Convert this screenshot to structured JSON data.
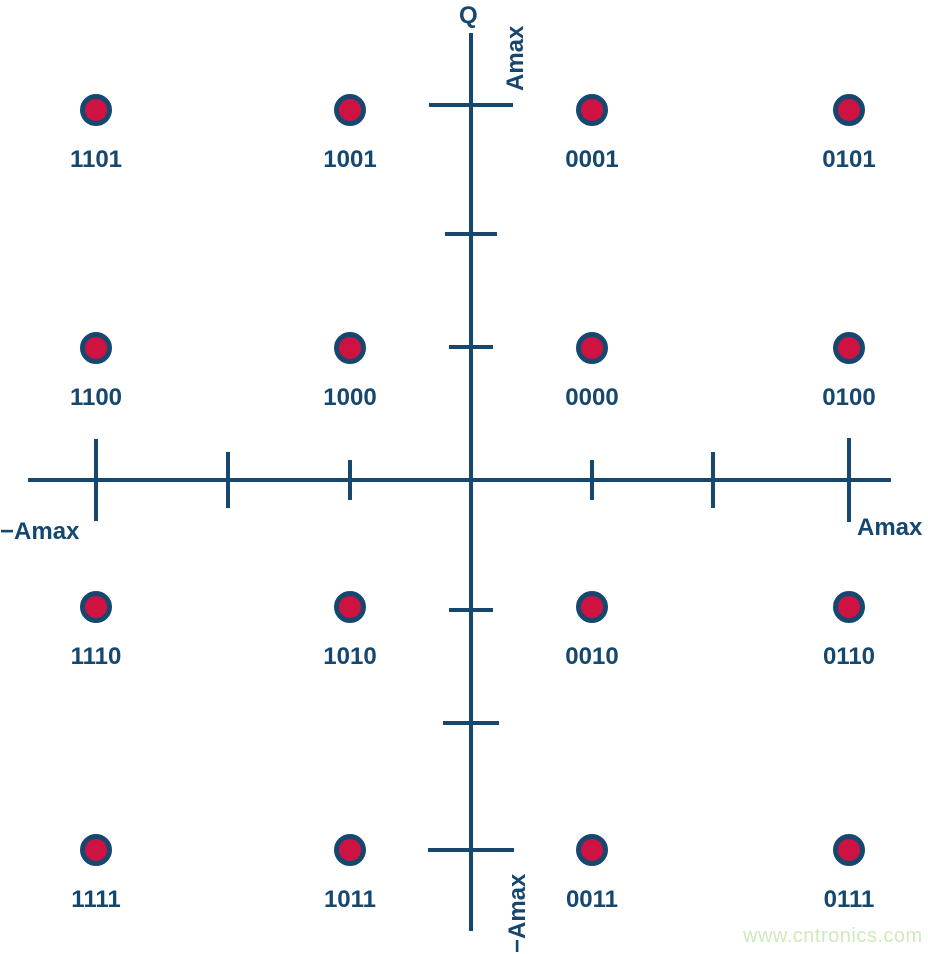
{
  "colors": {
    "axis": "#16476E",
    "point_fill": "#CE1241",
    "point_ring": "#16476E",
    "watermark": "#CFE9BD"
  },
  "axes": {
    "q_axis_label": "Q",
    "q_top_label": "Amax",
    "q_bottom_label": "−Amax",
    "i_left_label": "−Amax",
    "i_right_label": "Amax"
  },
  "watermark": "www.cntronics.com",
  "chart_data": {
    "type": "scatter",
    "description": "16-QAM constellation diagram: 4x4 grid of symbol points with Gray-coded 4-bit binary labels. I and Q amplitudes take values of ±Amax/3 and ±Amax.",
    "x_axis": {
      "label_left": "−Amax",
      "label_right": "Amax",
      "levels": [
        -1,
        -0.33,
        0.33,
        1
      ],
      "ticks_at": [
        -1,
        -0.67,
        -0.33,
        0.33,
        0.67,
        1
      ]
    },
    "y_axis": {
      "name": "Q",
      "label_top": "Amax",
      "label_bottom": "−Amax",
      "levels": [
        1,
        0.33,
        -0.33,
        -1
      ],
      "ticks_at": [
        1,
        0.67,
        0.33,
        -0.33,
        -0.67,
        -1
      ]
    },
    "points": [
      {
        "code": "1101",
        "col": 0,
        "row": 0,
        "i": -1,
        "q": 1
      },
      {
        "code": "1001",
        "col": 1,
        "row": 0,
        "i": -0.33,
        "q": 1
      },
      {
        "code": "0001",
        "col": 2,
        "row": 0,
        "i": 0.33,
        "q": 1
      },
      {
        "code": "0101",
        "col": 3,
        "row": 0,
        "i": 1,
        "q": 1
      },
      {
        "code": "1100",
        "col": 0,
        "row": 1,
        "i": -1,
        "q": 0.33
      },
      {
        "code": "1000",
        "col": 1,
        "row": 1,
        "i": -0.33,
        "q": 0.33
      },
      {
        "code": "0000",
        "col": 2,
        "row": 1,
        "i": 0.33,
        "q": 0.33
      },
      {
        "code": "0100",
        "col": 3,
        "row": 1,
        "i": 1,
        "q": 0.33
      },
      {
        "code": "1110",
        "col": 0,
        "row": 2,
        "i": -1,
        "q": -0.33
      },
      {
        "code": "1010",
        "col": 1,
        "row": 2,
        "i": -0.33,
        "q": -0.33
      },
      {
        "code": "0010",
        "col": 2,
        "row": 2,
        "i": 0.33,
        "q": -0.33
      },
      {
        "code": "0110",
        "col": 3,
        "row": 2,
        "i": 1,
        "q": -0.33
      },
      {
        "code": "1111",
        "col": 0,
        "row": 3,
        "i": -1,
        "q": -1
      },
      {
        "code": "1011",
        "col": 1,
        "row": 3,
        "i": -0.33,
        "q": -1
      },
      {
        "code": "0011",
        "col": 2,
        "row": 3,
        "i": 0.33,
        "q": -1
      },
      {
        "code": "0111",
        "col": 3,
        "row": 3,
        "i": 1,
        "q": -1
      }
    ]
  }
}
